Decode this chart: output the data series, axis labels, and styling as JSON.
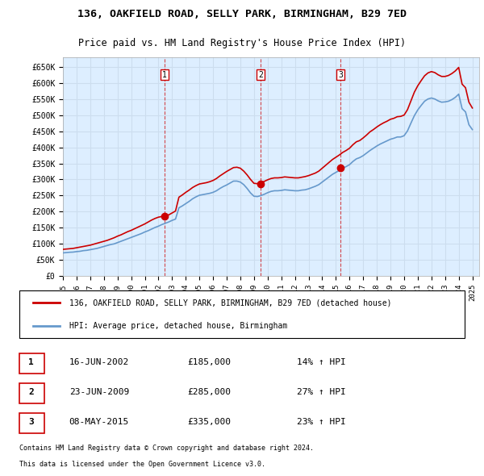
{
  "title1": "136, OAKFIELD ROAD, SELLY PARK, BIRMINGHAM, B29 7ED",
  "title2": "Price paid vs. HM Land Registry's House Price Index (HPI)",
  "ylabel_ticks": [
    "£0",
    "£50K",
    "£100K",
    "£150K",
    "£200K",
    "£250K",
    "£300K",
    "£350K",
    "£400K",
    "£450K",
    "£500K",
    "£550K",
    "£600K",
    "£650K"
  ],
  "ytick_values": [
    0,
    50000,
    100000,
    150000,
    200000,
    250000,
    300000,
    350000,
    400000,
    450000,
    500000,
    550000,
    600000,
    650000
  ],
  "ylim": [
    0,
    680000
  ],
  "xlim_start": 1995.0,
  "xlim_end": 2025.5,
  "xtick_labels": [
    "1995",
    "1996",
    "1997",
    "1998",
    "1999",
    "2000",
    "2001",
    "2002",
    "2003",
    "2004",
    "2005",
    "2006",
    "2007",
    "2008",
    "2009",
    "2010",
    "2011",
    "2012",
    "2013",
    "2014",
    "2015",
    "2016",
    "2017",
    "2018",
    "2019",
    "2020",
    "2021",
    "2022",
    "2023",
    "2024",
    "2025"
  ],
  "sale_color": "#cc0000",
  "hpi_color": "#6699cc",
  "grid_color": "#ccddee",
  "bg_color": "#ddeeff",
  "plot_bg": "#ddeeff",
  "sale_points": [
    [
      2002.46,
      185000
    ],
    [
      2009.47,
      285000
    ],
    [
      2015.35,
      335000
    ]
  ],
  "sale_label": "136, OAKFIELD ROAD, SELLY PARK, BIRMINGHAM, B29 7ED (detached house)",
  "hpi_label": "HPI: Average price, detached house, Birmingham",
  "transactions": [
    {
      "num": 1,
      "date": "16-JUN-2002",
      "price": "£185,000",
      "hpi": "14% ↑ HPI"
    },
    {
      "num": 2,
      "date": "23-JUN-2009",
      "price": "£285,000",
      "hpi": "27% ↑ HPI"
    },
    {
      "num": 3,
      "date": "08-MAY-2015",
      "price": "£335,000",
      "hpi": "23% ↑ HPI"
    }
  ],
  "footer1": "Contains HM Land Registry data © Crown copyright and database right 2024.",
  "footer2": "This data is licensed under the Open Government Licence v3.0.",
  "vline_years": [
    2002.46,
    2009.47,
    2015.35
  ],
  "hpi_series_x": [
    1995.0,
    1995.25,
    1995.5,
    1995.75,
    1996.0,
    1996.25,
    1996.5,
    1996.75,
    1997.0,
    1997.25,
    1997.5,
    1997.75,
    1998.0,
    1998.25,
    1998.5,
    1998.75,
    1999.0,
    1999.25,
    1999.5,
    1999.75,
    2000.0,
    2000.25,
    2000.5,
    2000.75,
    2001.0,
    2001.25,
    2001.5,
    2001.75,
    2002.0,
    2002.25,
    2002.5,
    2002.75,
    2003.0,
    2003.25,
    2003.5,
    2003.75,
    2004.0,
    2004.25,
    2004.5,
    2004.75,
    2005.0,
    2005.25,
    2005.5,
    2005.75,
    2006.0,
    2006.25,
    2006.5,
    2006.75,
    2007.0,
    2007.25,
    2007.5,
    2007.75,
    2008.0,
    2008.25,
    2008.5,
    2008.75,
    2009.0,
    2009.25,
    2009.5,
    2009.75,
    2010.0,
    2010.25,
    2010.5,
    2010.75,
    2011.0,
    2011.25,
    2011.5,
    2011.75,
    2012.0,
    2012.25,
    2012.5,
    2012.75,
    2013.0,
    2013.25,
    2013.5,
    2013.75,
    2014.0,
    2014.25,
    2014.5,
    2014.75,
    2015.0,
    2015.25,
    2015.5,
    2015.75,
    2016.0,
    2016.25,
    2016.5,
    2016.75,
    2017.0,
    2017.25,
    2017.5,
    2017.75,
    2018.0,
    2018.25,
    2018.5,
    2018.75,
    2019.0,
    2019.25,
    2019.5,
    2019.75,
    2020.0,
    2020.25,
    2020.5,
    2020.75,
    2021.0,
    2021.25,
    2021.5,
    2021.75,
    2022.0,
    2022.25,
    2022.5,
    2022.75,
    2023.0,
    2023.25,
    2023.5,
    2023.75,
    2024.0,
    2024.25,
    2024.5,
    2024.75,
    2025.0
  ],
  "hpi_series_y": [
    72000,
    73000,
    74000,
    74500,
    76000,
    77000,
    79000,
    80000,
    82000,
    84000,
    86000,
    89000,
    92000,
    95000,
    98000,
    100000,
    104000,
    108000,
    112000,
    116000,
    120000,
    124000,
    128000,
    132000,
    137000,
    141000,
    146000,
    151000,
    155000,
    160000,
    164000,
    168000,
    173000,
    177000,
    212000,
    218000,
    225000,
    232000,
    240000,
    246000,
    251000,
    253000,
    255000,
    257000,
    260000,
    265000,
    272000,
    278000,
    283000,
    289000,
    295000,
    295000,
    292000,
    284000,
    272000,
    258000,
    248000,
    247000,
    250000,
    254000,
    259000,
    263000,
    265000,
    265000,
    266000,
    268000,
    267000,
    266000,
    265000,
    265000,
    267000,
    268000,
    271000,
    275000,
    279000,
    284000,
    292000,
    300000,
    308000,
    316000,
    322000,
    328000,
    335000,
    340000,
    346000,
    356000,
    364000,
    368000,
    374000,
    382000,
    390000,
    397000,
    404000,
    410000,
    415000,
    420000,
    425000,
    428000,
    432000,
    432000,
    436000,
    451000,
    475000,
    498000,
    516000,
    530000,
    543000,
    550000,
    553000,
    550000,
    544000,
    540000,
    541000,
    543000,
    548000,
    555000,
    565000,
    520000,
    510000,
    470000,
    455000
  ],
  "sale_series_x": [
    1995.0,
    1995.25,
    1995.5,
    1995.75,
    1996.0,
    1996.25,
    1996.5,
    1996.75,
    1997.0,
    1997.25,
    1997.5,
    1997.75,
    1998.0,
    1998.25,
    1998.5,
    1998.75,
    1999.0,
    1999.25,
    1999.5,
    1999.75,
    2000.0,
    2000.25,
    2000.5,
    2000.75,
    2001.0,
    2001.25,
    2001.5,
    2001.75,
    2002.0,
    2002.25,
    2002.5,
    2002.75,
    2003.0,
    2003.25,
    2003.5,
    2003.75,
    2004.0,
    2004.25,
    2004.5,
    2004.75,
    2005.0,
    2005.25,
    2005.5,
    2005.75,
    2006.0,
    2006.25,
    2006.5,
    2006.75,
    2007.0,
    2007.25,
    2007.5,
    2007.75,
    2008.0,
    2008.25,
    2008.5,
    2008.75,
    2009.0,
    2009.25,
    2009.5,
    2009.75,
    2010.0,
    2010.25,
    2010.5,
    2010.75,
    2011.0,
    2011.25,
    2011.5,
    2011.75,
    2012.0,
    2012.25,
    2012.5,
    2012.75,
    2013.0,
    2013.25,
    2013.5,
    2013.75,
    2014.0,
    2014.25,
    2014.5,
    2014.75,
    2015.0,
    2015.25,
    2015.5,
    2015.75,
    2016.0,
    2016.25,
    2016.5,
    2016.75,
    2017.0,
    2017.25,
    2017.5,
    2017.75,
    2018.0,
    2018.25,
    2018.5,
    2018.75,
    2019.0,
    2019.25,
    2019.5,
    2019.75,
    2020.0,
    2020.25,
    2020.5,
    2020.75,
    2021.0,
    2021.25,
    2021.5,
    2021.75,
    2022.0,
    2022.25,
    2022.5,
    2022.75,
    2023.0,
    2023.25,
    2023.5,
    2023.75,
    2024.0,
    2024.25,
    2024.5,
    2024.75,
    2025.0
  ],
  "sale_series_y": [
    83000,
    84000,
    85000,
    86000,
    88000,
    90000,
    92000,
    94000,
    96000,
    99000,
    102000,
    105000,
    108000,
    111000,
    115000,
    119000,
    124000,
    128000,
    133000,
    138000,
    142000,
    147000,
    152000,
    157000,
    162000,
    168000,
    174000,
    179000,
    183000,
    185000,
    187000,
    190000,
    196000,
    202000,
    245000,
    252000,
    260000,
    267000,
    275000,
    281000,
    286000,
    288000,
    290000,
    293000,
    297000,
    303000,
    311000,
    318000,
    325000,
    331000,
    337000,
    338000,
    335000,
    326000,
    314000,
    300000,
    288000,
    287000,
    290000,
    294000,
    299000,
    303000,
    305000,
    305000,
    306000,
    308000,
    307000,
    306000,
    305000,
    305000,
    307000,
    309000,
    312000,
    316000,
    320000,
    326000,
    335000,
    344000,
    353000,
    362000,
    369000,
    376000,
    384000,
    390000,
    397000,
    408000,
    417000,
    421000,
    429000,
    438000,
    448000,
    455000,
    463000,
    470000,
    476000,
    481000,
    487000,
    490000,
    495000,
    496000,
    500000,
    517000,
    544000,
    571000,
    591000,
    607000,
    622000,
    631000,
    635000,
    632000,
    625000,
    620000,
    620000,
    623000,
    629000,
    637000,
    648000,
    596000,
    585000,
    540000,
    522000
  ]
}
